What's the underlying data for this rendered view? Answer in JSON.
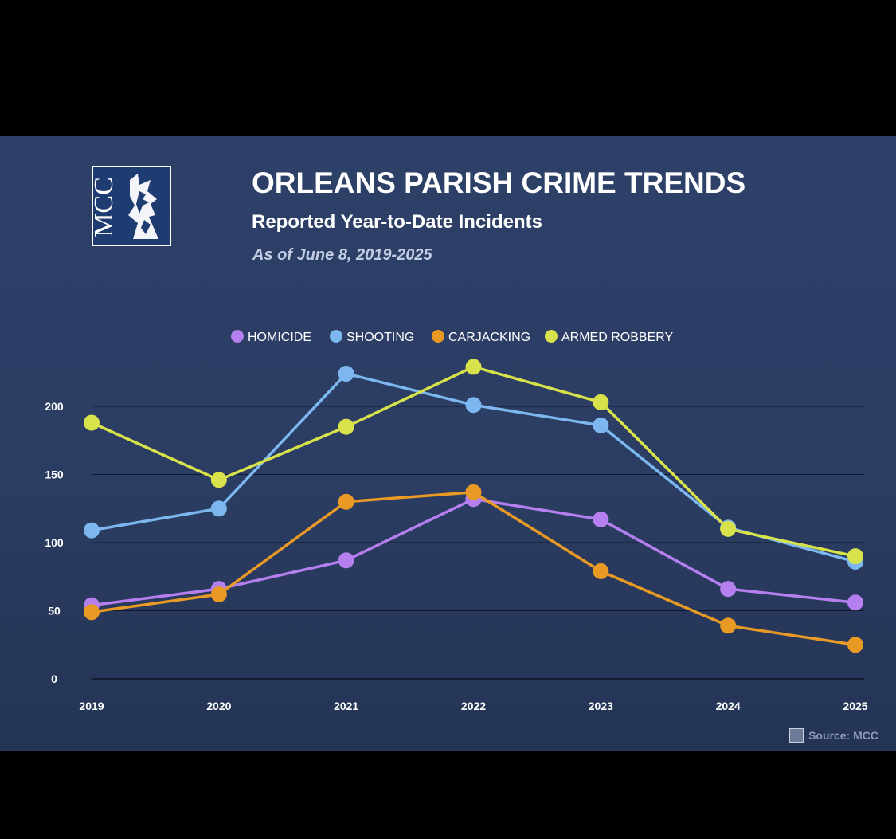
{
  "header": {
    "logo_text": "MCC",
    "title": "ORLEANS PARISH CRIME TRENDS",
    "subtitle": "Reported Year-to-Date Incidents",
    "note": "As of June 8, 2019-2025"
  },
  "footer": {
    "source": "Source: MCC"
  },
  "chart_data": {
    "type": "line",
    "x": [
      "2019",
      "2020",
      "2021",
      "2022",
      "2023",
      "2024",
      "2025"
    ],
    "ylim": [
      0,
      200
    ],
    "yticks": [
      0,
      50,
      100,
      150,
      200
    ],
    "grid": true,
    "legend_position": "top-center",
    "series": [
      {
        "name": "HOMICIDE",
        "color": "#b57ff0",
        "values": [
          54,
          66,
          87,
          132,
          117,
          66,
          56
        ]
      },
      {
        "name": "SHOOTING",
        "color": "#7db7f0",
        "values": [
          109,
          125,
          224,
          201,
          186,
          111,
          86
        ]
      },
      {
        "name": "CARJACKING",
        "color": "#e89a24",
        "values": [
          49,
          62,
          130,
          137,
          79,
          39,
          25
        ]
      },
      {
        "name": "ARMED ROBBERY",
        "color": "#d8e24a",
        "values": [
          188,
          146,
          185,
          229,
          203,
          110,
          90
        ]
      }
    ]
  }
}
